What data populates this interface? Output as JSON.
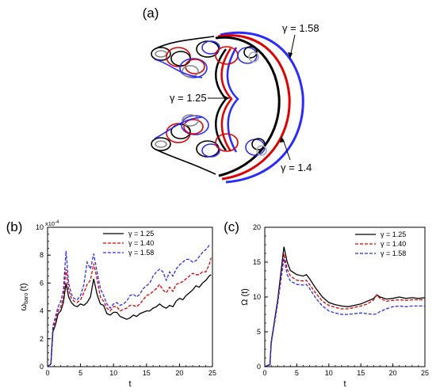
{
  "figure": {
    "panel_a": {
      "label": "(a)",
      "annotations": [
        "γ = 1.58",
        "γ = 1.25",
        "γ = 1.4"
      ],
      "colors": {
        "g125": "#000000",
        "g140": "#e00000",
        "g158": "#2b2bff"
      }
    }
  },
  "chart_data": [
    {
      "type": "line",
      "panel_label": "(b)",
      "xlabel": "t",
      "ylabel": "ω_baro (t)",
      "ylabel_main": "ω",
      "ylabel_sub": "baro",
      "ylabel_tail": "(t)",
      "exponent_label": "x10",
      "exponent_power": "-4",
      "xlim": [
        0,
        25
      ],
      "ylim": [
        0,
        10
      ],
      "xticks": [
        "0",
        "5",
        "10",
        "15",
        "20",
        "25"
      ],
      "yticks": [
        "0",
        "2",
        "4",
        "6",
        "8",
        "10"
      ],
      "legend_position": "top-right",
      "series": [
        {
          "name": "γ = 1.25",
          "color": "#000000",
          "dash": "solid",
          "x": [
            0,
            0.5,
            0.8,
            1.2,
            1.6,
            2.0,
            2.4,
            2.8,
            3.2,
            3.6,
            4,
            4.5,
            5,
            5.5,
            6,
            6.5,
            7,
            7.5,
            8,
            8.5,
            9,
            9.5,
            10,
            10.5,
            11,
            11.5,
            12,
            12.5,
            13,
            13.5,
            14,
            14.5,
            15,
            15.5,
            16,
            16.5,
            17,
            17.5,
            18,
            18.5,
            19,
            19.5,
            20,
            20.5,
            21,
            21.5,
            22,
            22.5,
            23,
            23.5,
            24,
            24.5,
            24.8
          ],
          "y": [
            0,
            0.2,
            2.5,
            3.0,
            3.8,
            4.0,
            4.6,
            6.0,
            5.0,
            4.6,
            4.4,
            4.3,
            4.5,
            4.4,
            4.6,
            5.0,
            6.3,
            5.2,
            4.5,
            4.4,
            3.8,
            3.7,
            3.9,
            3.9,
            3.6,
            3.5,
            3.4,
            3.5,
            3.7,
            3.6,
            3.8,
            3.9,
            4.0,
            4.0,
            4.2,
            4.3,
            4.5,
            4.3,
            4.2,
            4.4,
            4.3,
            4.7,
            4.9,
            4.8,
            5.1,
            5.3,
            5.5,
            5.8,
            5.7,
            6.0,
            6.2,
            6.5,
            6.6
          ]
        },
        {
          "name": "γ = 1.40",
          "color": "#e00000",
          "dash": "dashed",
          "x": [
            0,
            0.5,
            0.8,
            1.2,
            1.6,
            2.0,
            2.4,
            2.8,
            3.2,
            3.6,
            4,
            4.5,
            5,
            5.5,
            6,
            6.5,
            7,
            7.5,
            8,
            8.5,
            9,
            9.5,
            10,
            10.5,
            11,
            11.5,
            12,
            12.5,
            13,
            13.5,
            14,
            14.5,
            15,
            15.5,
            16,
            16.5,
            17,
            17.5,
            18,
            18.5,
            19,
            19.5,
            20,
            20.5,
            21,
            21.5,
            22,
            22.5,
            23,
            23.5,
            24,
            24.5,
            24.8
          ],
          "y": [
            0,
            0.2,
            2.7,
            3.3,
            4.0,
            4.3,
            5.0,
            7.0,
            5.5,
            4.9,
            4.7,
            4.6,
            4.8,
            5.3,
            5.9,
            6.2,
            7.4,
            6.3,
            5.0,
            4.7,
            4.2,
            4.0,
            4.3,
            4.3,
            4.0,
            4.1,
            4.2,
            4.4,
            4.4,
            4.3,
            4.5,
            4.8,
            5.1,
            5.2,
            5.4,
            5.6,
            5.9,
            5.5,
            5.3,
            5.7,
            5.4,
            5.9,
            6.0,
            6.1,
            6.3,
            6.5,
            6.7,
            6.6,
            6.6,
            6.8,
            6.8,
            7.3,
            7.8
          ]
        },
        {
          "name": "γ = 1.58",
          "color": "#2b2bff",
          "dash": "dashed",
          "x": [
            0,
            0.5,
            0.8,
            1.2,
            1.6,
            2.0,
            2.4,
            2.8,
            3.2,
            3.6,
            4,
            4.5,
            5,
            5.5,
            6,
            6.5,
            7,
            7.5,
            8,
            8.5,
            9,
            9.5,
            10,
            10.5,
            11,
            11.5,
            12,
            12.5,
            13,
            13.5,
            14,
            14.5,
            15,
            15.5,
            16,
            16.5,
            17,
            17.5,
            18,
            18.5,
            19,
            19.5,
            20,
            20.5,
            21,
            21.5,
            22,
            22.5,
            23,
            23.5,
            24,
            24.5,
            24.8
          ],
          "y": [
            0,
            0.2,
            2.9,
            3.6,
            4.3,
            4.7,
            5.5,
            8.3,
            6.0,
            5.2,
            4.9,
            4.8,
            5.1,
            5.9,
            7.5,
            7.0,
            8.1,
            6.8,
            5.6,
            5.1,
            4.5,
            4.2,
            4.5,
            4.6,
            4.4,
            4.5,
            4.7,
            5.1,
            5.2,
            5.0,
            5.2,
            5.6,
            5.8,
            6.0,
            6.5,
            6.8,
            7.0,
            6.8,
            6.2,
            6.8,
            6.5,
            7.0,
            7.3,
            7.5,
            7.7,
            7.7,
            7.5,
            7.6,
            7.9,
            8.2,
            8.4,
            8.7,
            8.7
          ]
        }
      ]
    },
    {
      "type": "line",
      "panel_label": "(c)",
      "xlabel": "t",
      "ylabel": "Ω (t)",
      "xlim": [
        0,
        25
      ],
      "ylim": [
        0,
        20
      ],
      "xticks": [
        "0",
        "5",
        "10",
        "15",
        "20",
        "25"
      ],
      "yticks": [
        "0",
        "5",
        "10",
        "15",
        "20"
      ],
      "legend_position": "top-right",
      "series": [
        {
          "name": "γ = 1.25",
          "color": "#000000",
          "dash": "solid",
          "x": [
            0,
            0.8,
            1,
            2,
            3,
            3.5,
            4,
            5,
            6,
            6.5,
            7,
            8,
            9,
            10,
            11,
            12,
            13,
            14,
            15,
            16,
            17,
            17.5,
            18,
            19,
            20,
            21,
            22,
            23,
            24,
            25
          ],
          "y": [
            0,
            0.3,
            3.5,
            9.5,
            17.2,
            15.0,
            13.8,
            13.2,
            13.0,
            13.2,
            12.6,
            11.2,
            10.0,
            9.2,
            8.9,
            8.7,
            8.6,
            8.8,
            9.0,
            9.4,
            9.8,
            10.3,
            10.0,
            9.7,
            9.8,
            10.0,
            9.8,
            9.9,
            9.8,
            9.9
          ]
        },
        {
          "name": "γ = 1.40",
          "color": "#e00000",
          "dash": "dashed",
          "x": [
            0,
            0.8,
            1,
            2,
            3,
            3.5,
            4,
            5,
            6,
            6.5,
            7,
            8,
            9,
            10,
            11,
            12,
            13,
            14,
            15,
            16,
            17,
            17.5,
            18,
            19,
            20,
            21,
            22,
            23,
            24,
            25
          ],
          "y": [
            0,
            0.3,
            3.4,
            9.2,
            16.2,
            14.0,
            13.0,
            12.4,
            12.3,
            12.4,
            11.8,
            10.5,
            9.4,
            8.8,
            8.5,
            8.3,
            8.3,
            8.5,
            8.7,
            9.0,
            9.6,
            10.3,
            9.8,
            9.4,
            9.5,
            9.6,
            9.5,
            9.6,
            9.6,
            9.6
          ]
        },
        {
          "name": "γ = 1.58",
          "color": "#2b2bff",
          "dash": "dashed",
          "x": [
            0,
            0.8,
            1,
            2,
            3,
            3.5,
            4,
            5,
            6,
            6.5,
            7,
            8,
            9,
            10,
            11,
            12,
            13,
            14,
            15,
            16,
            17,
            17.5,
            18,
            19,
            20,
            21,
            22,
            23,
            24,
            25
          ],
          "y": [
            0,
            0.3,
            3.3,
            9.0,
            15.5,
            13.2,
            12.3,
            11.8,
            11.7,
            11.8,
            11.2,
            9.8,
            8.7,
            8.0,
            7.7,
            7.5,
            7.5,
            7.6,
            7.7,
            7.6,
            7.5,
            7.6,
            7.9,
            8.3,
            8.6,
            8.7,
            8.6,
            8.7,
            8.7,
            8.7
          ]
        }
      ]
    }
  ]
}
